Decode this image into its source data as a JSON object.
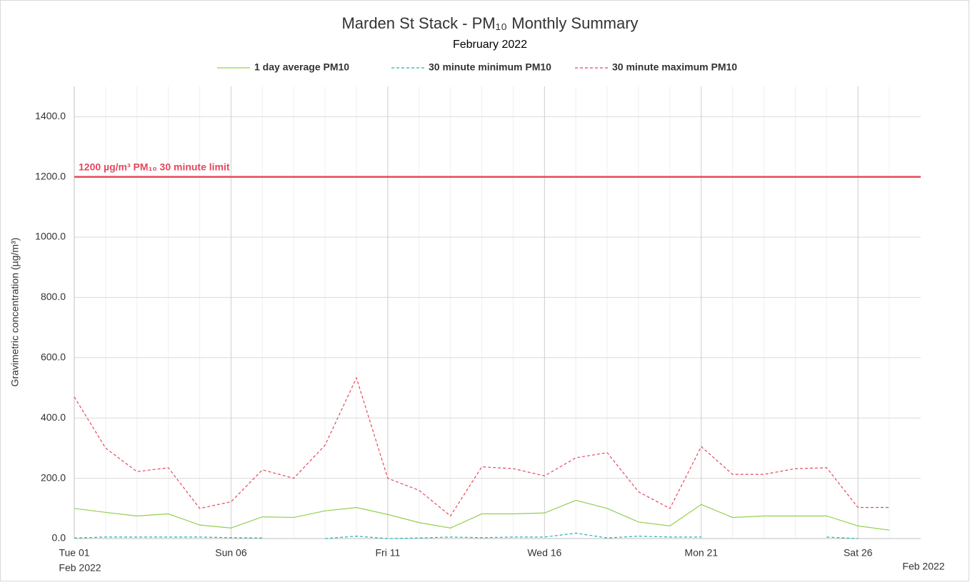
{
  "chart_data": {
    "type": "line",
    "title": "Marden St Stack - PM₁₀ Monthly Summary",
    "subtitle": "February 2022",
    "ylabel": "Gravimetric concentration (µg/m³)",
    "x": [
      "2022-02-01",
      "2022-02-02",
      "2022-02-03",
      "2022-02-04",
      "2022-02-05",
      "2022-02-06",
      "2022-02-07",
      "2022-02-08",
      "2022-02-09",
      "2022-02-10",
      "2022-02-11",
      "2022-02-12",
      "2022-02-13",
      "2022-02-14",
      "2022-02-15",
      "2022-02-16",
      "2022-02-17",
      "2022-02-18",
      "2022-02-19",
      "2022-02-20",
      "2022-02-21",
      "2022-02-22",
      "2022-02-23",
      "2022-02-24",
      "2022-02-25",
      "2022-02-26",
      "2022-02-27"
    ],
    "series": [
      {
        "name": "1 day average PM10",
        "color": "#92d050",
        "dash": "none",
        "values": [
          100,
          87,
          75,
          82,
          45,
          35,
          72,
          70,
          92,
          103,
          80,
          53,
          35,
          82,
          82,
          85,
          127,
          100,
          55,
          42,
          113,
          70,
          75,
          75,
          75,
          42,
          28
        ]
      },
      {
        "name": "30 minute minimum PM10",
        "color": "#1fb5b5",
        "dash": "4 3",
        "values": [
          2,
          5,
          5,
          5,
          5,
          3,
          2,
          null,
          0,
          8,
          0,
          2,
          5,
          3,
          5,
          5,
          18,
          2,
          8,
          5,
          5,
          null,
          null,
          null,
          5,
          0,
          null
        ]
      },
      {
        "name": "30 minute maximum PM10",
        "color": "#e8475c",
        "dash": "4 3",
        "values": [
          470,
          300,
          222,
          235,
          100,
          122,
          228,
          200,
          310,
          533,
          200,
          160,
          75,
          238,
          232,
          208,
          268,
          285,
          155,
          100,
          305,
          213,
          213,
          232,
          235,
          103,
          103
        ]
      }
    ],
    "xlim": [
      "2022-02-01",
      "2022-02-28"
    ],
    "xlim_labels": [
      "Feb 2022",
      "Feb 2022"
    ],
    "xticks": [
      {
        "value": "2022-02-01",
        "label": "Tue 01"
      },
      {
        "value": "2022-02-06",
        "label": "Sun 06"
      },
      {
        "value": "2022-02-11",
        "label": "Fri 11"
      },
      {
        "value": "2022-02-16",
        "label": "Wed 16"
      },
      {
        "value": "2022-02-21",
        "label": "Mon 21"
      },
      {
        "value": "2022-02-26",
        "label": "Sat 26"
      }
    ],
    "ylim": [
      0,
      1500
    ],
    "yticks": [
      {
        "value": 0,
        "label": "0.0"
      },
      {
        "value": 200,
        "label": "200.0"
      },
      {
        "value": 400,
        "label": "400.0"
      },
      {
        "value": 600,
        "label": "600.0"
      },
      {
        "value": 800,
        "label": "800.0"
      },
      {
        "value": 1000,
        "label": "1000.0"
      },
      {
        "value": 1200,
        "label": "1200.0"
      },
      {
        "value": 1400,
        "label": "1400.0"
      }
    ],
    "grid": true,
    "limit": {
      "value": 1200,
      "label": "1200 µg/m³ PM₁₀ 30 minute limit",
      "color": "#e8475c"
    },
    "legend": "top"
  }
}
